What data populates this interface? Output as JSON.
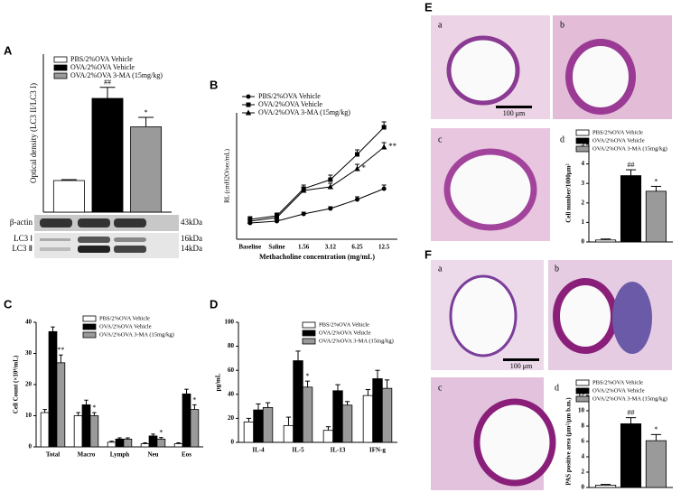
{
  "chart_data": [
    {
      "type": "bar",
      "ylabel": "Optical density (LC3 II/LC3 I)",
      "categories": [
        null
      ],
      "ylim": [
        0,
        5
      ],
      "legend": "top-right",
      "series": [
        {
          "name": "PBS/2%OVA Vehicle",
          "color": "#ffffff",
          "values": [
            1.0
          ],
          "errors": [
            0.03
          ],
          "annotations": [
            null
          ]
        },
        {
          "name": "OVA/2%OVA Vehicle",
          "color": "#000000",
          "values": [
            3.6
          ],
          "errors": [
            0.35
          ],
          "annotations": [
            "##"
          ]
        },
        {
          "name": "OVA/2%OVA 3-MA (15mg/kg)",
          "color": "#9a9a9a",
          "values": [
            2.7
          ],
          "errors": [
            0.3
          ],
          "annotations": [
            "*"
          ]
        }
      ]
    },
    {
      "type": "line",
      "ylabel": "RL (cmH2O/sec/mL)",
      "xlabel": "Methacholine concentration (mg/mL)",
      "categories": [
        "Baseline",
        "Saline",
        "1.56",
        "3.12",
        "6.25",
        "12.5"
      ],
      "ylim": [
        0,
        7
      ],
      "legend": "top-left",
      "series": [
        {
          "name": "PBS/2%OVA Vehicle",
          "color": "#000000",
          "marker": "circle",
          "values": [
            0.9,
            1.0,
            1.4,
            1.7,
            2.2,
            2.8
          ],
          "errors": [
            0.1,
            0.1,
            0.1,
            0.1,
            0.15,
            0.2
          ],
          "annotations": [
            null,
            null,
            null,
            null,
            null,
            null
          ]
        },
        {
          "name": "OVA/2%OVA Vehicle",
          "color": "#000000",
          "marker": "square",
          "values": [
            1.1,
            1.3,
            2.8,
            3.3,
            4.7,
            6.2
          ],
          "errors": [
            0.15,
            0.15,
            0.2,
            0.25,
            0.25,
            0.3
          ],
          "annotations": [
            null,
            null,
            null,
            null,
            null,
            null
          ]
        },
        {
          "name": "OVA/2%OVA 3-MA (15mg/kg)",
          "color": "#000000",
          "marker": "triangle",
          "values": [
            1.0,
            1.2,
            2.7,
            2.9,
            3.9,
            5.1
          ],
          "errors": [
            0.1,
            0.15,
            0.2,
            0.2,
            0.25,
            0.25
          ],
          "annotations": [
            null,
            null,
            null,
            null,
            "*",
            "**"
          ]
        }
      ]
    },
    {
      "type": "bar",
      "ylabel": "Cell Count (×10⁴/mL)",
      "categories": [
        "Total",
        "Macro",
        "Lymph",
        "Neu",
        "Eos"
      ],
      "ylim": [
        0,
        40
      ],
      "yticks": [
        0,
        10,
        20,
        30,
        40
      ],
      "legend": "top-right",
      "series": [
        {
          "name": "PBS/2%OVA Vehicle",
          "color": "#ffffff",
          "values": [
            11,
            10,
            1.5,
            1,
            1
          ],
          "errors": [
            1,
            1,
            0.3,
            0.3,
            0.3
          ],
          "annotations": [
            null,
            null,
            null,
            null,
            null
          ]
        },
        {
          "name": "OVA/2%OVA Vehicle",
          "color": "#000000",
          "values": [
            37,
            13.5,
            2.5,
            3.5,
            17
          ],
          "errors": [
            1.5,
            1.5,
            0.4,
            0.6,
            1.5
          ],
          "annotations": [
            null,
            null,
            null,
            null,
            null
          ]
        },
        {
          "name": "OVA/2%OVA 3-MA (15mg/kg)",
          "color": "#9a9a9a",
          "values": [
            27,
            10,
            2.5,
            2.5,
            12
          ],
          "errors": [
            2.5,
            1,
            0.4,
            0.5,
            1.5
          ],
          "annotations": [
            "**",
            "*",
            null,
            "*",
            "*"
          ]
        }
      ]
    },
    {
      "type": "bar",
      "ylabel": "pg/mL",
      "categories": [
        "IL-4",
        "IL-5",
        "IL-13",
        "IFN-g"
      ],
      "ylim": [
        0,
        100
      ],
      "yticks": [
        0,
        20,
        40,
        60,
        80,
        100
      ],
      "legend": "top-right",
      "series": [
        {
          "name": "PBS/2%OVA Vehicle",
          "color": "#ffffff",
          "values": [
            17,
            14,
            10,
            39
          ],
          "errors": [
            3,
            7,
            3,
            5
          ],
          "annotations": [
            null,
            null,
            null,
            null
          ]
        },
        {
          "name": "OVA/2%OVA Vehicle",
          "color": "#000000",
          "values": [
            27,
            68,
            43,
            53
          ],
          "errors": [
            5,
            8,
            5,
            7
          ],
          "annotations": [
            null,
            null,
            null,
            null
          ]
        },
        {
          "name": "OVA/2%OVA 3-MA (15mg/kg)",
          "color": "#9a9a9a",
          "values": [
            29,
            46,
            31,
            45
          ],
          "errors": [
            4,
            5,
            3,
            7
          ],
          "annotations": [
            null,
            "*",
            null,
            null
          ]
        }
      ]
    },
    {
      "type": "bar",
      "ylabel": "Cell number/1000μm²",
      "categories": [
        null
      ],
      "ylim": [
        0,
        5
      ],
      "yticks": [
        0,
        1,
        2,
        3,
        4,
        5
      ],
      "legend": "top-right",
      "series": [
        {
          "name": "PBS/2%OVA Vehicle",
          "color": "#ffffff",
          "values": [
            0.1
          ],
          "errors": [
            0.05
          ],
          "annotations": [
            null
          ]
        },
        {
          "name": "OVA/2%OVA Vehicle",
          "color": "#000000",
          "values": [
            3.4
          ],
          "errors": [
            0.3
          ],
          "annotations": [
            "##"
          ]
        },
        {
          "name": "OVA/2%OVA 3-MA (15mg/kg)",
          "color": "#9a9a9a",
          "values": [
            2.6
          ],
          "errors": [
            0.25
          ],
          "annotations": [
            "*"
          ]
        }
      ]
    },
    {
      "type": "bar",
      "ylabel": "PAS positive area (μm²/μm b.m.)",
      "categories": [
        null
      ],
      "ylim": [
        0,
        12
      ],
      "yticks": [
        0,
        2,
        4,
        6,
        8,
        10,
        12
      ],
      "legend": "top-right",
      "series": [
        {
          "name": "PBS/2%OVA Vehicle",
          "color": "#ffffff",
          "values": [
            0.3
          ],
          "errors": [
            0.1
          ],
          "annotations": [
            null
          ]
        },
        {
          "name": "OVA/2%OVA Vehicle",
          "color": "#000000",
          "values": [
            8.3
          ],
          "errors": [
            0.8
          ],
          "annotations": [
            "##"
          ]
        },
        {
          "name": "OVA/2%OVA 3-MA (15mg/kg)",
          "color": "#9a9a9a",
          "values": [
            6.1
          ],
          "errors": [
            0.8
          ],
          "annotations": [
            "*"
          ]
        }
      ]
    }
  ],
  "panels": [
    "A",
    "B",
    "C",
    "D",
    "E",
    "F"
  ],
  "blot": {
    "actin": "β-actin",
    "lc3i": "LC3 Ⅰ",
    "lc3ii": "LC3 Ⅱ",
    "kda43": "43kDa",
    "kda16": "16kDa",
    "kda14": "14kDa"
  },
  "images": {
    "e": [
      "a",
      "b",
      "c",
      "d"
    ],
    "f": [
      "a",
      "b",
      "c",
      "d"
    ],
    "scale": "100 μm"
  }
}
